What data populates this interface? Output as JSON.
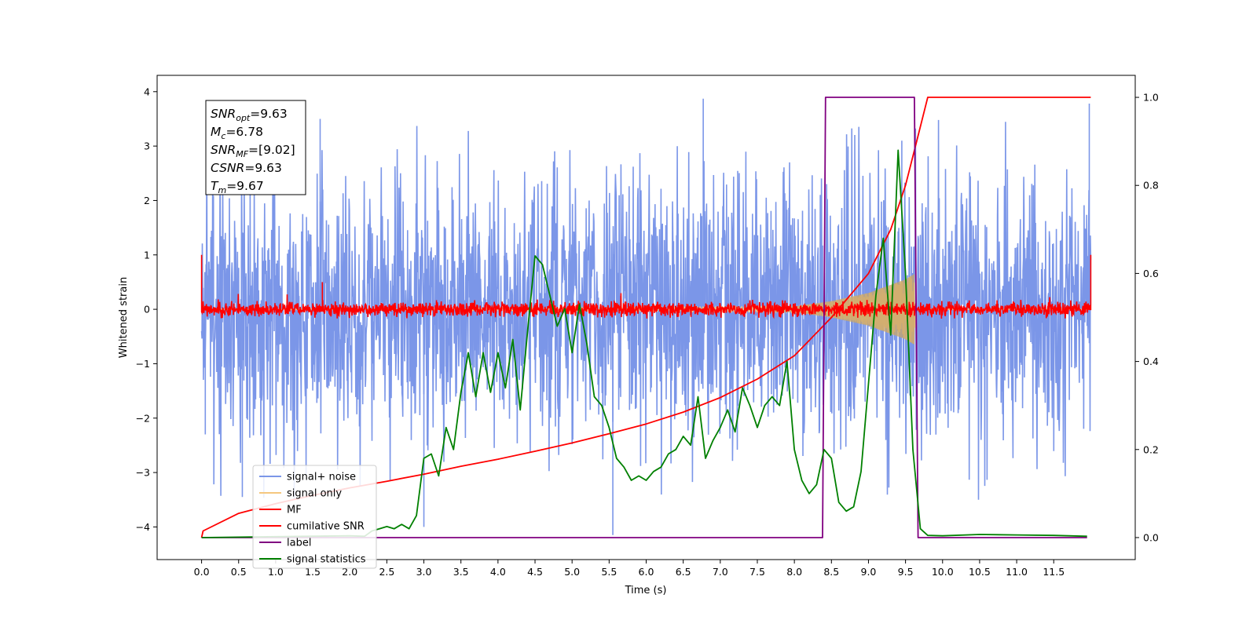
{
  "chart_data": {
    "type": "line",
    "title": "",
    "xlabel": "Time (s)",
    "ylabel": "Whitened strain",
    "xlim": [
      -0.6,
      12.6
    ],
    "ylim": [
      -4.6,
      4.3
    ],
    "ylim_right": [
      -0.05,
      1.05
    ],
    "grid": false,
    "legend_placement": "lower-left",
    "x_ticks": [
      "0.0",
      "0.5",
      "1.0",
      "1.5",
      "2.0",
      "2.5",
      "3.0",
      "3.5",
      "4.0",
      "4.5",
      "5.0",
      "5.5",
      "6.0",
      "6.5",
      "7.0",
      "7.5",
      "8.0",
      "8.5",
      "9.0",
      "9.5",
      "10.0",
      "10.5",
      "11.0",
      "11.5"
    ],
    "y_ticks_left": [
      "4",
      "3",
      "2",
      "1",
      "0",
      "−1",
      "−2",
      "−3",
      "−4"
    ],
    "y_ticks_right": [
      "1.0",
      "0.8",
      "0.6",
      "0.4",
      "0.2",
      "0.0"
    ],
    "annotation": [
      {
        "base": "SNR",
        "sub": "opt",
        "value": "=9.63"
      },
      {
        "base": "M",
        "sub": "c",
        "value": "=6.78"
      },
      {
        "base": "SNR",
        "sub": "MF",
        "value": "=[9.02]"
      },
      {
        "base": "CSNR",
        "sub": "",
        "value": "=9.63"
      },
      {
        "base": "T",
        "sub": "m",
        "value": "=9.67"
      }
    ],
    "series": [
      {
        "name": "signal+ noise",
        "color": "#7b96e8",
        "axis": "left",
        "style": "noisy band",
        "x_range": [
          0.0,
          12.0
        ],
        "typical_band": [
          -2.0,
          2.0
        ],
        "extremes": [
          -4.15,
          3.87
        ]
      },
      {
        "name": "signal only",
        "color": "#f5c77e",
        "axis": "left",
        "style": "chirp",
        "x": [
          0.0,
          8.0,
          8.5,
          9.0,
          9.3,
          9.5,
          9.62,
          9.63,
          12.0
        ],
        "envelope": [
          0.0,
          0.05,
          0.15,
          0.3,
          0.45,
          0.55,
          0.65,
          0.0,
          0.0
        ]
      },
      {
        "name": "MF",
        "color": "#ff0000",
        "axis": "left",
        "style": "noisy band",
        "x_range": [
          0.0,
          12.0
        ],
        "typical_band": [
          -0.15,
          0.15
        ],
        "extremes": [
          -0.2,
          1.0
        ]
      },
      {
        "name": "cumilative SNR",
        "color": "#ff0000",
        "axis": "right",
        "x": [
          0.0,
          0.02,
          0.5,
          1.0,
          1.5,
          2.0,
          2.5,
          3.0,
          3.5,
          4.0,
          4.5,
          5.0,
          5.5,
          6.0,
          6.5,
          7.0,
          7.5,
          8.0,
          8.5,
          9.0,
          9.3,
          9.5,
          9.65,
          9.8,
          12.0
        ],
        "values": [
          0.0,
          0.015,
          0.055,
          0.077,
          0.096,
          0.113,
          0.128,
          0.144,
          0.162,
          0.178,
          0.196,
          0.215,
          0.236,
          0.258,
          0.285,
          0.318,
          0.36,
          0.413,
          0.5,
          0.6,
          0.7,
          0.8,
          0.9,
          1.0,
          1.0
        ]
      },
      {
        "name": "label",
        "color": "#800080",
        "axis": "right",
        "x": [
          0.0,
          8.38,
          8.42,
          9.62,
          9.67,
          11.95
        ],
        "values": [
          0.0,
          0.0,
          1.0,
          1.0,
          0.0,
          0.0
        ]
      },
      {
        "name": "signal statistics",
        "color": "#008000",
        "axis": "right",
        "x": [
          0.0,
          1.0,
          2.0,
          2.2,
          2.3,
          2.4,
          2.5,
          2.6,
          2.7,
          2.8,
          2.9,
          3.0,
          3.1,
          3.2,
          3.3,
          3.4,
          3.5,
          3.6,
          3.7,
          3.8,
          3.9,
          4.0,
          4.1,
          4.2,
          4.3,
          4.4,
          4.5,
          4.6,
          4.7,
          4.8,
          4.9,
          5.0,
          5.1,
          5.2,
          5.3,
          5.4,
          5.5,
          5.6,
          5.7,
          5.8,
          5.9,
          6.0,
          6.1,
          6.2,
          6.3,
          6.4,
          6.5,
          6.6,
          6.7,
          6.8,
          6.9,
          7.0,
          7.1,
          7.2,
          7.3,
          7.4,
          7.5,
          7.6,
          7.7,
          7.8,
          7.9,
          8.0,
          8.1,
          8.2,
          8.3,
          8.4,
          8.5,
          8.6,
          8.7,
          8.8,
          8.9,
          9.0,
          9.1,
          9.2,
          9.3,
          9.4,
          9.5,
          9.6,
          9.7,
          9.8,
          10.0,
          10.5,
          11.0,
          11.5,
          11.95
        ],
        "values": [
          0.0,
          0.002,
          0.004,
          0.003,
          0.015,
          0.02,
          0.025,
          0.02,
          0.03,
          0.02,
          0.05,
          0.18,
          0.19,
          0.14,
          0.25,
          0.2,
          0.33,
          0.42,
          0.32,
          0.42,
          0.33,
          0.42,
          0.34,
          0.45,
          0.29,
          0.47,
          0.64,
          0.62,
          0.55,
          0.48,
          0.52,
          0.42,
          0.53,
          0.44,
          0.32,
          0.3,
          0.25,
          0.18,
          0.16,
          0.13,
          0.14,
          0.13,
          0.15,
          0.16,
          0.19,
          0.2,
          0.23,
          0.21,
          0.32,
          0.18,
          0.22,
          0.25,
          0.29,
          0.24,
          0.34,
          0.3,
          0.25,
          0.3,
          0.32,
          0.3,
          0.4,
          0.2,
          0.13,
          0.1,
          0.12,
          0.2,
          0.18,
          0.08,
          0.06,
          0.07,
          0.15,
          0.35,
          0.55,
          0.68,
          0.46,
          0.88,
          0.6,
          0.2,
          0.02,
          0.005,
          0.004,
          0.007,
          0.006,
          0.005,
          0.003
        ]
      }
    ]
  }
}
